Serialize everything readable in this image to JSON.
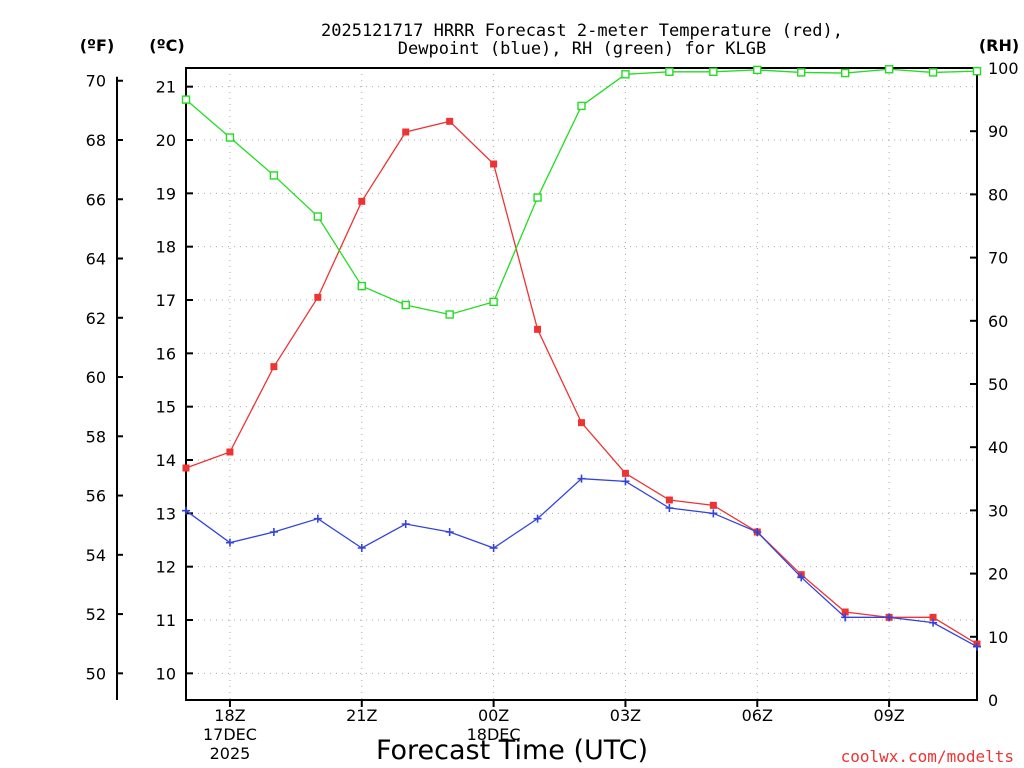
{
  "chart_data": {
    "type": "line",
    "title": [
      "2025121717 HRRR Forecast 2-meter Temperature (red),",
      "Dewpoint (blue), RH (green) for KLGB"
    ],
    "xlabel": "Forecast Time (UTC)",
    "credit": "coolwx.com/modelts",
    "left_axis_unit": "(ºF)",
    "celsius_axis_unit": "(ºC)",
    "right_axis_unit": "(RH)",
    "x_ticks": [
      {
        "hour": 1,
        "lines": [
          "18Z",
          "17DEC",
          "2025"
        ]
      },
      {
        "hour": 4,
        "lines": [
          "21Z"
        ]
      },
      {
        "hour": 7,
        "lines": [
          "00Z",
          "18DEC"
        ]
      },
      {
        "hour": 10,
        "lines": [
          "03Z"
        ]
      },
      {
        "hour": 13,
        "lines": [
          "06Z"
        ]
      },
      {
        "hour": 16,
        "lines": [
          "09Z"
        ]
      }
    ],
    "x_range": [
      0,
      18
    ],
    "fahrenheit_ticks": [
      50,
      52,
      54,
      56,
      58,
      60,
      62,
      64,
      66,
      68,
      70
    ],
    "celsius_ticks": [
      10,
      11,
      12,
      13,
      14,
      15,
      16,
      17,
      18,
      19,
      20,
      21
    ],
    "rh_ticks": [
      0,
      10,
      20,
      30,
      40,
      50,
      60,
      70,
      80,
      90,
      100
    ],
    "celsius_range": [
      9.5,
      21.35
    ],
    "rh_range": [
      0,
      100
    ],
    "grid": true,
    "x": [
      "17Z 17DEC",
      "18Z",
      "19Z",
      "20Z",
      "21Z",
      "22Z",
      "23Z",
      "00Z 18DEC",
      "01Z",
      "02Z",
      "03Z",
      "04Z",
      "05Z",
      "06Z",
      "07Z",
      "08Z",
      "09Z",
      "10Z",
      "11Z"
    ],
    "series": [
      {
        "name": "Temperature (red)",
        "axis": "celsius",
        "color": "#ee3333",
        "marker": "filled-square",
        "values": [
          13.85,
          14.15,
          15.75,
          17.05,
          18.85,
          20.15,
          20.35,
          19.55,
          16.45,
          14.7,
          13.75,
          13.25,
          13.15,
          12.65,
          11.85,
          11.15,
          11.05,
          11.05,
          10.55
        ]
      },
      {
        "name": "Dewpoint (blue)",
        "axis": "celsius",
        "color": "#3344dd",
        "marker": "plus",
        "values": [
          13.05,
          12.45,
          12.65,
          12.9,
          12.35,
          12.8,
          12.65,
          12.35,
          12.9,
          13.65,
          13.6,
          13.1,
          13.0,
          12.65,
          11.8,
          11.05,
          11.05,
          10.95,
          10.5
        ]
      },
      {
        "name": "RH (green)",
        "axis": "rh",
        "color": "#22dd22",
        "marker": "open-square",
        "values": [
          95,
          89,
          83,
          76.5,
          65.5,
          62.5,
          61,
          63,
          79.5,
          94,
          99,
          99.4,
          99.4,
          99.7,
          99.3,
          99.2,
          99.8,
          99.3,
          99.5
        ]
      }
    ]
  }
}
